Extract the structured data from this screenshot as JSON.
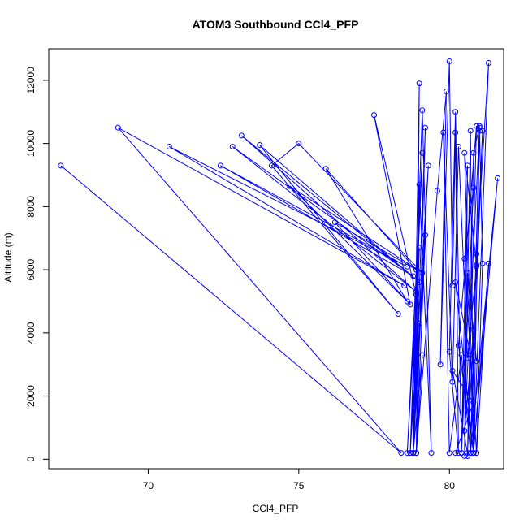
{
  "chart_data": {
    "type": "scatter",
    "title": "ATOM3 Southbound CCl4_PFP",
    "xlabel": "CCl4_PFP",
    "ylabel": "Altitude (m)",
    "xlim": [
      66.7,
      81.8
    ],
    "ylim": [
      -300,
      13000
    ],
    "x_ticks": [
      70,
      75,
      80
    ],
    "y_ticks": [
      0,
      2000,
      4000,
      6000,
      8000,
      10000,
      12000
    ],
    "grid": false,
    "legend": "none",
    "color": "#0000ff",
    "series": [
      {
        "x": [
          67.1,
          78.4,
          69.0,
          78.5,
          70.7,
          78.6,
          72.4,
          78.8,
          72.8,
          78.9,
          73.1,
          79.0,
          73.7,
          78.3,
          74.1,
          75.0,
          79.1,
          74.7,
          78.6,
          75.9,
          78.9,
          76.2,
          78.7,
          77.5,
          78.9,
          78.6,
          79.1,
          78.7,
          79.3,
          78.8,
          79.0,
          78.9,
          79.2,
          78.8,
          79.0,
          79.4,
          79.1,
          78.7,
          79.0,
          78.8,
          79.2,
          78.9,
          79.1,
          78.8,
          79.0,
          78.9,
          79.6,
          79.9,
          79.7,
          80.0,
          80.1,
          80.2,
          80.3,
          80.0,
          80.2,
          80.4,
          80.6,
          80.5,
          80.7,
          80.8,
          80.3,
          80.9,
          80.6,
          80.8,
          81.0,
          80.7,
          80.9,
          81.3,
          80.8,
          81.0,
          81.1,
          80.9,
          81.3,
          80.8,
          81.6,
          80.7,
          81.0,
          80.5,
          80.8,
          80.9,
          80.6,
          80.4,
          80.8,
          80.5,
          80.9,
          80.7,
          80.2,
          80.8,
          80.5,
          80.9,
          81.1,
          80.7,
          80.4,
          80.0,
          79.8,
          80.1,
          80.3,
          80.6,
          80.9,
          80.6,
          80.1,
          80.8,
          80.2
        ],
        "y": [
          9300,
          200,
          10500,
          5500,
          9900,
          6100,
          9300,
          5800,
          9900,
          5300,
          10250,
          5600,
          9950,
          4600,
          9300,
          10000,
          5900,
          8650,
          5000,
          9200,
          6000,
          7500,
          4900,
          10900,
          5200,
          200,
          9700,
          200,
          9300,
          200,
          11900,
          200,
          10500,
          200,
          8700,
          200,
          11050,
          200,
          6700,
          200,
          7100,
          200,
          3300,
          200,
          4300,
          200,
          8500,
          11650,
          3000,
          12600,
          5500,
          10350,
          200,
          3400,
          11000,
          200,
          9300,
          100,
          10400,
          200,
          3600,
          10550,
          100,
          9700,
          10550,
          200,
          6500,
          12550,
          200,
          10400,
          6200,
          200,
          6200,
          200,
          8900,
          200,
          10500,
          900,
          4100,
          3100,
          5900,
          200,
          8600,
          6350,
          200,
          3300,
          5600,
          200,
          9700,
          6150,
          10400,
          200,
          3300,
          200,
          10350,
          2450,
          9900,
          3200,
          6100,
          200,
          2800,
          1800,
          200
        ]
      }
    ]
  }
}
